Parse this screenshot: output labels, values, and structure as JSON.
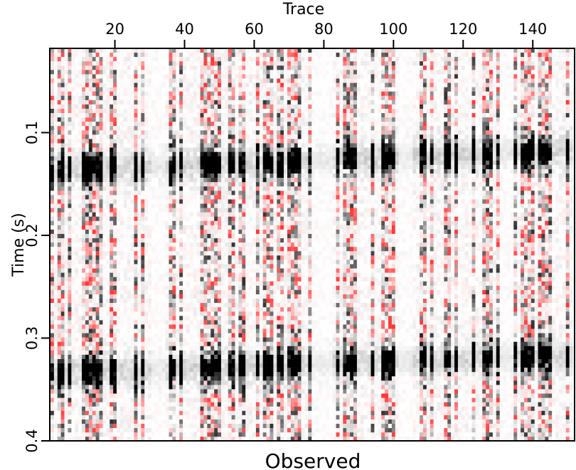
{
  "chart_data": {
    "type": "heatmap",
    "title": "Observed",
    "xlabel": "Trace",
    "ylabel": "Time (s)",
    "x_axis_position": "top",
    "xlim": [
      1.3,
      152
    ],
    "ylim": [
      0.018,
      0.4
    ],
    "xticks": [
      20,
      40,
      60,
      80,
      100,
      120,
      140
    ],
    "yticks": [
      0.1,
      0.2,
      0.3,
      0.4
    ],
    "xtick_labels": [
      "20",
      "40",
      "60",
      "80",
      "100",
      "120",
      "140"
    ],
    "ytick_labels": [
      "0.1",
      "0.2",
      "0.3",
      "0.4"
    ],
    "n_traces": 151,
    "sample_interval_s": 0.0042,
    "colormap": {
      "positive": "#ff0000",
      "zero": "#ffffff",
      "negative": "#000000"
    },
    "reflectors": [
      {
        "time_at_first_trace": 0.135,
        "time_at_last_trace": 0.115,
        "amplitude": -1.0
      },
      {
        "time_at_first_trace": 0.332,
        "time_at_last_trace": 0.315,
        "amplitude": -1.0
      }
    ],
    "dead_trace_ranges": [
      [
        31,
        34
      ],
      [
        77,
        82
      ],
      [
        102,
        105
      ],
      [
        131,
        134
      ]
    ],
    "noise_level": 0.8,
    "seed": 12345
  }
}
